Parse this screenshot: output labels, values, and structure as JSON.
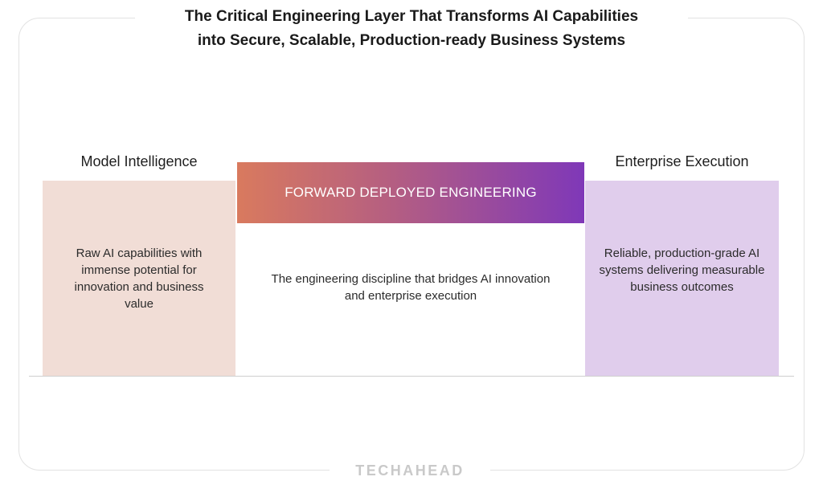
{
  "title": {
    "line1": "The Critical Engineering Layer That Transforms AI Capabilities",
    "line2": "into Secure, Scalable, Production-ready Business Systems"
  },
  "left": {
    "heading": "Model Intelligence",
    "text": "Raw AI capabilities with immense potential for innovation and business value",
    "color": "#f1ddd6"
  },
  "center": {
    "banner": "FORWARD DEPLOYED ENGINEERING",
    "text": "The engineering discipline that bridges AI innovation and enterprise execution",
    "gradient_start": "#d97a5e",
    "gradient_end": "#7f38b8"
  },
  "right": {
    "heading": "Enterprise Execution",
    "text": "Reliable, production-grade AI systems delivering measurable business outcomes",
    "color": "#e0cdec"
  },
  "brand": {
    "logo_text": "TECHAHEAD"
  }
}
